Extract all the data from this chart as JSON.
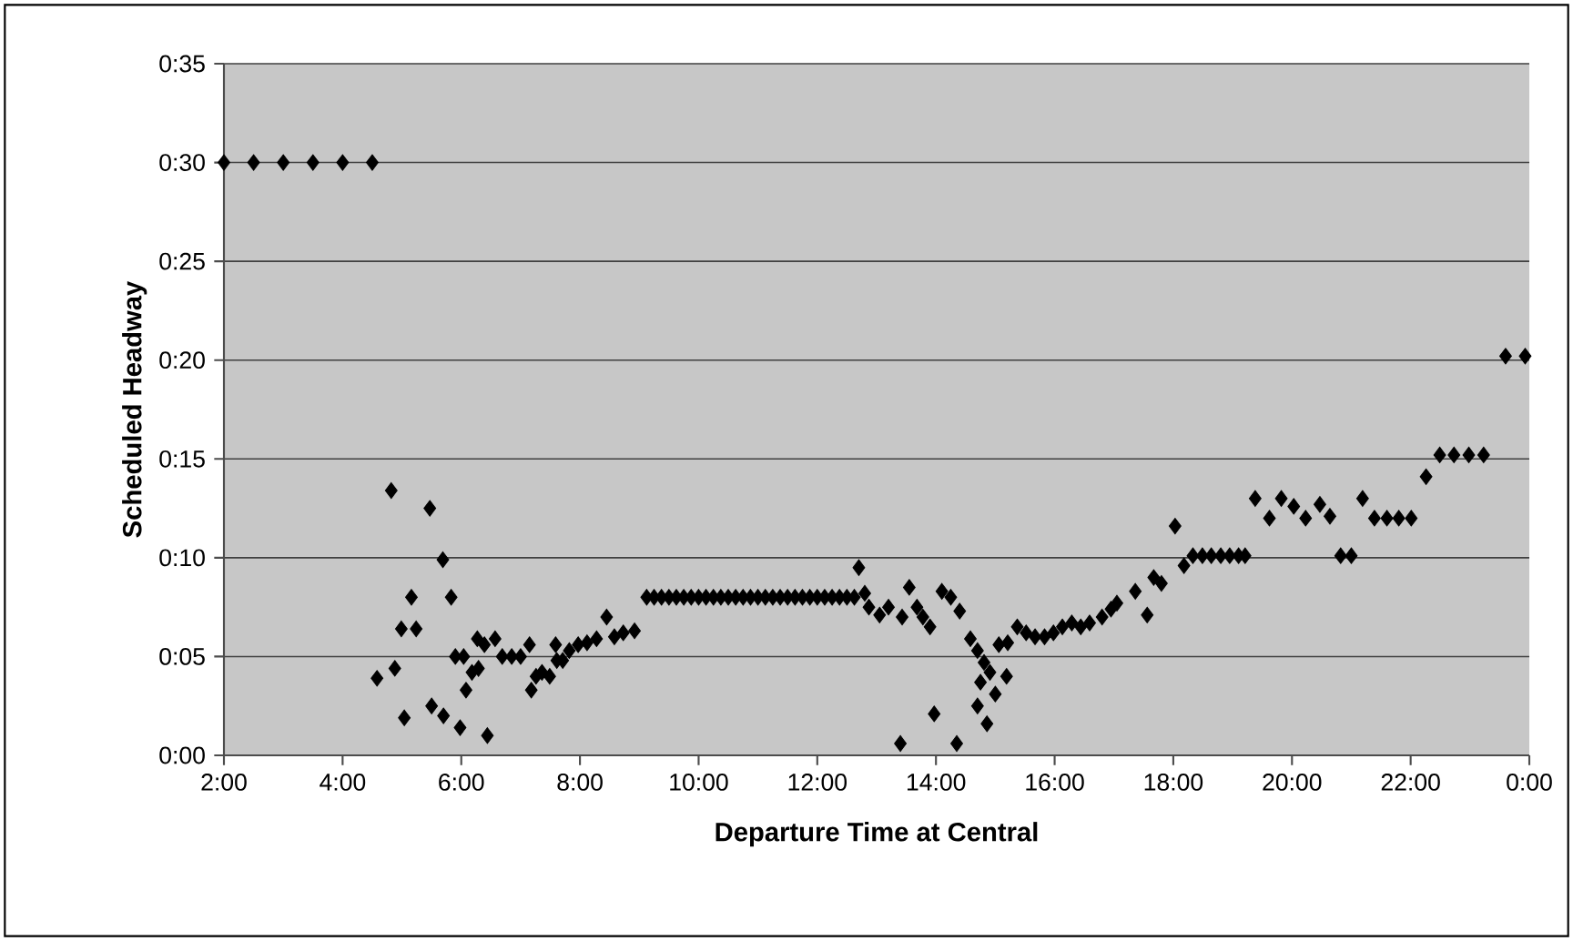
{
  "chart_data": {
    "type": "scatter",
    "xlabel": "Departure Time at Central",
    "ylabel": "Scheduled Headway",
    "x": [
      2.0,
      2.5,
      3.0,
      3.5,
      4.0,
      4.5,
      4.58,
      4.82,
      4.88,
      4.99,
      5.04,
      5.16,
      5.24,
      5.47,
      5.5,
      5.69,
      5.7,
      5.83,
      5.9,
      5.98,
      6.04,
      6.08,
      6.18,
      6.27,
      6.29,
      6.39,
      6.44,
      6.57,
      6.69,
      6.85,
      7.0,
      7.15,
      7.18,
      7.26,
      7.36,
      7.49,
      7.59,
      7.61,
      7.71,
      7.82,
      7.97,
      8.12,
      8.28,
      8.45,
      8.58,
      8.73,
      8.92,
      9.125,
      9.25,
      9.375,
      9.5,
      9.625,
      9.75,
      9.875,
      10.0,
      10.125,
      10.25,
      10.375,
      10.5,
      10.625,
      10.75,
      10.875,
      11.0,
      11.125,
      11.25,
      11.375,
      11.5,
      11.625,
      11.75,
      11.875,
      12.0,
      12.125,
      12.25,
      12.375,
      12.5,
      12.625,
      12.7,
      12.8,
      12.87,
      13.05,
      13.2,
      13.4,
      13.43,
      13.55,
      13.68,
      13.78,
      13.9,
      13.97,
      14.1,
      14.25,
      14.35,
      14.4,
      14.58,
      14.7,
      14.7,
      14.75,
      14.81,
      14.86,
      14.91,
      15.0,
      15.06,
      15.19,
      15.21,
      15.37,
      15.52,
      15.67,
      15.83,
      15.98,
      16.13,
      16.29,
      16.44,
      16.59,
      16.8,
      16.95,
      17.05,
      17.36,
      17.56,
      17.67,
      17.8,
      18.03,
      18.18,
      18.33,
      18.49,
      18.64,
      18.8,
      18.95,
      19.1,
      19.21,
      19.38,
      19.62,
      19.82,
      20.03,
      20.23,
      20.47,
      20.64,
      20.82,
      21.0,
      21.19,
      21.39,
      21.6,
      21.8,
      22.01,
      22.26,
      22.49,
      22.73,
      22.98,
      23.23,
      23.6,
      23.93
    ],
    "values": [
      30,
      30,
      30,
      30,
      30,
      30,
      3.9,
      13.4,
      4.4,
      6.4,
      1.9,
      8.0,
      6.4,
      12.5,
      2.5,
      9.9,
      2.0,
      8.0,
      5.0,
      1.4,
      5.0,
      3.3,
      4.2,
      5.9,
      4.4,
      5.6,
      1.0,
      5.9,
      5.0,
      5.0,
      5.0,
      5.6,
      3.3,
      4.0,
      4.2,
      4.0,
      5.6,
      4.8,
      4.8,
      5.3,
      5.6,
      5.7,
      5.9,
      7.0,
      6.0,
      6.2,
      6.3,
      8,
      8,
      8,
      8,
      8,
      8,
      8,
      8,
      8,
      8,
      8,
      8,
      8,
      8,
      8,
      8,
      8,
      8,
      8,
      8,
      8,
      8,
      8,
      8,
      8,
      8,
      8,
      8,
      8,
      9.5,
      8.2,
      7.5,
      7.1,
      7.5,
      0.6,
      7.0,
      8.5,
      7.5,
      7.0,
      6.5,
      2.1,
      8.3,
      8.0,
      0.6,
      7.3,
      5.9,
      5.3,
      2.5,
      3.7,
      4.7,
      1.6,
      4.2,
      3.1,
      5.6,
      4.0,
      5.7,
      6.5,
      6.2,
      6.0,
      6.0,
      6.2,
      6.5,
      6.7,
      6.5,
      6.7,
      7.0,
      7.4,
      7.7,
      8.3,
      7.1,
      9.0,
      8.7,
      11.6,
      9.6,
      10.1,
      10.1,
      10.1,
      10.1,
      10.1,
      10.1,
      10.1,
      13.0,
      12.0,
      13.0,
      12.6,
      12.0,
      12.7,
      12.1,
      10.1,
      10.1,
      13.0,
      12.0,
      12.0,
      12.0,
      12.0,
      14.1,
      15.2,
      15.2,
      15.2,
      15.2,
      20.2,
      20.2
    ],
    "color": "#000000",
    "marker": "diamond",
    "grid": "y",
    "xlim": [
      2,
      24
    ],
    "xticks": [
      {
        "value": 2,
        "label": "2:00"
      },
      {
        "value": 4,
        "label": "4:00"
      },
      {
        "value": 6,
        "label": "6:00"
      },
      {
        "value": 8,
        "label": "8:00"
      },
      {
        "value": 10,
        "label": "10:00"
      },
      {
        "value": 12,
        "label": "12:00"
      },
      {
        "value": 14,
        "label": "14:00"
      },
      {
        "value": 16,
        "label": "16:00"
      },
      {
        "value": 18,
        "label": "18:00"
      },
      {
        "value": 20,
        "label": "20:00"
      },
      {
        "value": 22,
        "label": "22:00"
      },
      {
        "value": 24,
        "label": "0:00"
      }
    ],
    "ylim": [
      0,
      35
    ],
    "yticks": [
      {
        "value": 0,
        "label": "0:00"
      },
      {
        "value": 5,
        "label": "0:05"
      },
      {
        "value": 10,
        "label": "0:10"
      },
      {
        "value": 15,
        "label": "0:15"
      },
      {
        "value": 20,
        "label": "0:20"
      },
      {
        "value": 25,
        "label": "0:25"
      },
      {
        "value": 30,
        "label": "0:30"
      },
      {
        "value": 35,
        "label": "0:35"
      }
    ]
  }
}
